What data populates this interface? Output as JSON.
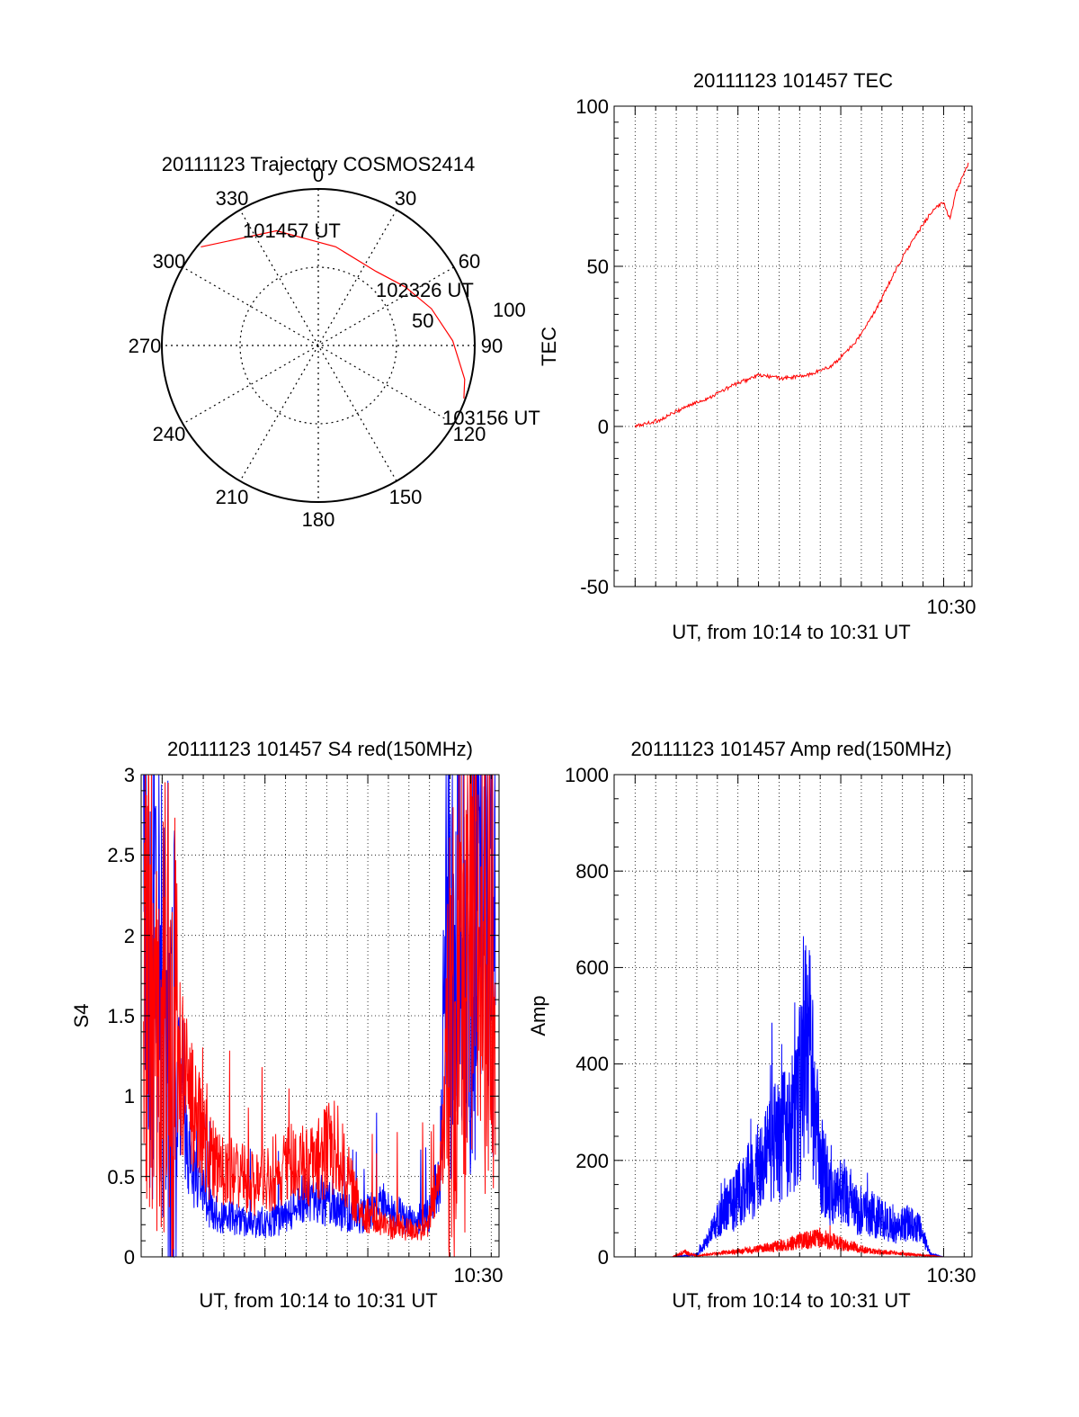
{
  "chart_data": [
    {
      "type": "polar",
      "title": "20111123 Trajectory COSMOS2414",
      "angle_ticks": [
        "0",
        "30",
        "60",
        "90",
        "120",
        "150",
        "180",
        "210",
        "240",
        "270",
        "300",
        "330"
      ],
      "radial_ticks": [
        "50",
        "100"
      ],
      "radial_range": [
        0,
        100
      ],
      "grid": true,
      "series": [
        {
          "color": "#ff0000",
          "points": [
            {
              "az": 310,
              "r": 98
            },
            {
              "az": 340,
              "r": 78
            },
            {
              "az": 10,
              "r": 64
            },
            {
              "az": 38,
              "r": 60
            },
            {
              "az": 56,
              "r": 67
            },
            {
              "az": 72,
              "r": 76
            },
            {
              "az": 88,
              "r": 86
            },
            {
              "az": 103,
              "r": 96
            },
            {
              "az": 110,
              "r": 99
            }
          ]
        }
      ],
      "annotations": [
        {
          "text": "101457 UT",
          "az": 310,
          "r": 98
        },
        {
          "text": "102326 UT",
          "az": 38,
          "r": 60
        },
        {
          "text": "103156 UT",
          "az": 110,
          "r": 99
        }
      ]
    },
    {
      "type": "line",
      "title": "20111123 101457 TEC",
      "xlabel": "UT, from 10:14 to 10:31 UT",
      "ylabel": "TEC",
      "xlim": [
        10.233,
        10.523
      ],
      "ylim": [
        -50,
        100
      ],
      "xticks": [
        {
          "value": 10.5,
          "label": "10:30"
        }
      ],
      "yticks": [
        "-50",
        "0",
        "50",
        "100"
      ],
      "grid": true,
      "series": [
        {
          "color": "#ff0000",
          "x": [
            10.25,
            10.27,
            10.29,
            10.31,
            10.33,
            10.35,
            10.37,
            10.39,
            10.41,
            10.43,
            10.44,
            10.45,
            10.46,
            10.47,
            10.48,
            10.49,
            10.5,
            10.505,
            10.51,
            10.52
          ],
          "y": [
            0,
            2,
            6,
            9,
            13,
            16,
            15,
            16,
            19,
            27,
            33,
            40,
            48,
            55,
            61,
            67,
            70,
            65,
            73,
            82
          ]
        }
      ]
    },
    {
      "type": "line",
      "title": "20111123 101457 S4 red(150MHz)",
      "xlabel": "UT, from 10:14 to 10:31 UT",
      "ylabel": "S4",
      "xlim": [
        10.233,
        10.523
      ],
      "ylim": [
        0,
        3
      ],
      "xticks": [
        {
          "value": 10.5,
          "label": "10:30"
        }
      ],
      "yticks": [
        "0",
        "0.5",
        "1",
        "1.5",
        "2",
        "2.5",
        "3"
      ],
      "grid": true,
      "series": [
        {
          "color": "#0000ff",
          "x": [
            10.235,
            10.24,
            10.25,
            10.26,
            10.275,
            10.29,
            10.31,
            10.33,
            10.35,
            10.37,
            10.39,
            10.41,
            10.43,
            10.45,
            10.465,
            10.475,
            10.48,
            10.49,
            10.5,
            10.51,
            10.52
          ],
          "y": [
            2.4,
            2.0,
            1.6,
            1.2,
            0.55,
            0.28,
            0.24,
            0.2,
            0.25,
            0.4,
            0.3,
            0.25,
            0.32,
            0.22,
            0.25,
            0.5,
            1.8,
            2.2,
            2.1,
            2.3,
            2.2
          ]
        },
        {
          "color": "#ff0000",
          "x": [
            10.235,
            10.24,
            10.25,
            10.26,
            10.275,
            10.29,
            10.31,
            10.33,
            10.35,
            10.37,
            10.39,
            10.41,
            10.43,
            10.45,
            10.465,
            10.475,
            10.48,
            10.49,
            10.5,
            10.51,
            10.52
          ],
          "y": [
            2.1,
            1.7,
            1.4,
            1.3,
            0.9,
            0.6,
            0.5,
            0.45,
            0.6,
            0.55,
            0.7,
            0.3,
            0.2,
            0.17,
            0.18,
            0.5,
            1.1,
            1.5,
            1.8,
            2.0,
            1.9
          ]
        }
      ]
    },
    {
      "type": "line",
      "title": "20111123 101457 Amp red(150MHz)",
      "xlabel": "UT, from 10:14 to 10:31 UT",
      "ylabel": "Amp",
      "xlim": [
        10.233,
        10.523
      ],
      "ylim": [
        0,
        1000
      ],
      "xticks": [
        {
          "value": 10.5,
          "label": "10:30"
        }
      ],
      "yticks": [
        "0",
        "200",
        "400",
        "600",
        "800",
        "1000"
      ],
      "grid": true,
      "series": [
        {
          "color": "#0000ff",
          "x": [
            10.25,
            10.28,
            10.3,
            10.31,
            10.32,
            10.33,
            10.34,
            10.35,
            10.36,
            10.37,
            10.38,
            10.39,
            10.4,
            10.41,
            10.42,
            10.43,
            10.44,
            10.45,
            10.46,
            10.47,
            10.48,
            10.49,
            10.5,
            10.52
          ],
          "y": [
            0,
            0,
            5,
            40,
            90,
            110,
            150,
            180,
            230,
            250,
            280,
            450,
            200,
            120,
            140,
            100,
            90,
            80,
            60,
            70,
            60,
            5,
            0,
            0
          ]
        },
        {
          "color": "#ff0000",
          "x": [
            10.25,
            10.28,
            10.29,
            10.3,
            10.32,
            10.34,
            10.36,
            10.38,
            10.4,
            10.42,
            10.44,
            10.46,
            10.48,
            10.5,
            10.52
          ],
          "y": [
            0,
            0,
            10,
            2,
            8,
            12,
            20,
            30,
            40,
            25,
            12,
            8,
            4,
            0,
            0
          ]
        }
      ]
    }
  ]
}
